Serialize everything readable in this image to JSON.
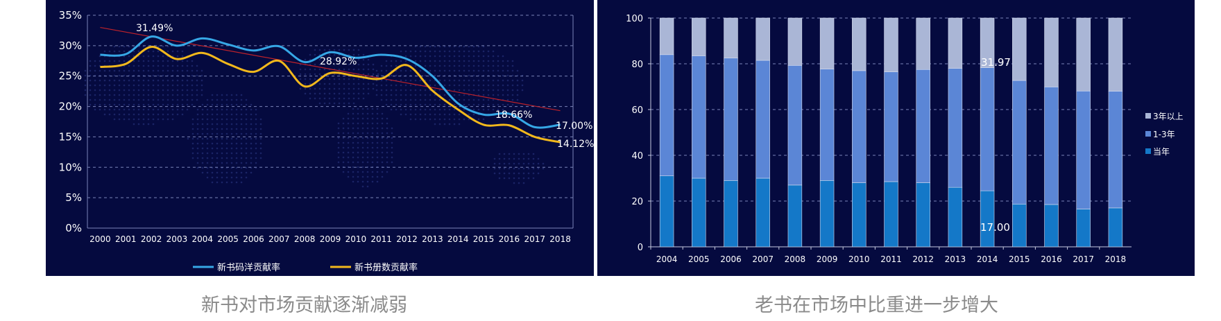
{
  "captions": {
    "left": "新书对市场贡献逐渐减弱",
    "right": "老书在市场中比重进一步增大"
  },
  "colors": {
    "panel_bg": "#050a3f",
    "line_code_yang": "#36a7e6",
    "line_volume": "#f2b81c",
    "trend": "#c0222a",
    "bar_current": "#1478c8",
    "bar_1to3": "#5b86d6",
    "bar_3plus": "#aab6d6"
  },
  "chart_data": [
    {
      "type": "line",
      "title": "",
      "x": [
        "2000",
        "2001",
        "2002",
        "2003",
        "2004",
        "2005",
        "2006",
        "2007",
        "2008",
        "2009",
        "2010",
        "2011",
        "2012",
        "2013",
        "2014",
        "2015",
        "2016",
        "2017",
        "2018"
      ],
      "ylim": [
        0,
        35
      ],
      "yticks": [
        "0%",
        "5%",
        "10%",
        "15%",
        "20%",
        "25%",
        "30%",
        "35%"
      ],
      "series": [
        {
          "name": "新书码洋贡献率",
          "values": [
            28.5,
            28.6,
            31.49,
            30.0,
            31.2,
            30.2,
            29.2,
            29.9,
            27.3,
            28.92,
            28.0,
            28.5,
            27.8,
            25.0,
            20.5,
            18.66,
            18.8,
            16.6,
            17.0
          ]
        },
        {
          "name": "新书册数贡献率",
          "values": [
            26.5,
            27.0,
            29.8,
            27.8,
            28.8,
            27.0,
            25.7,
            27.5,
            23.3,
            25.5,
            25.0,
            24.6,
            26.8,
            22.6,
            19.5,
            17.0,
            16.9,
            15.0,
            14.12
          ]
        }
      ],
      "trendline": {
        "start": 33.0,
        "end": 19.3
      },
      "annotations": [
        "31.49%",
        "28.92%",
        "18.66%",
        "17.00%",
        "14.12%"
      ],
      "legend": [
        "新书码洋贡献率",
        "新书册数贡献率"
      ],
      "legend_position": "bottom"
    },
    {
      "type": "bar",
      "stacked": true,
      "categories": [
        "2004",
        "2005",
        "2006",
        "2007",
        "2008",
        "2009",
        "2010",
        "2011",
        "2012",
        "2013",
        "2014",
        "2015",
        "2016",
        "2017",
        "2018"
      ],
      "ylim": [
        0,
        100
      ],
      "yticks": [
        "0",
        "20",
        "40",
        "60",
        "80",
        "100"
      ],
      "series": [
        {
          "name": "当年",
          "values": [
            31,
            30,
            29,
            30,
            27,
            29,
            28,
            28.5,
            28,
            26,
            24.5,
            18.7,
            18.5,
            16.5,
            17
          ]
        },
        {
          "name": "1-3年",
          "values": [
            53,
            53.5,
            53.5,
            51.5,
            52.3,
            48.7,
            49,
            48,
            49.5,
            52,
            53.8,
            54,
            51.4,
            51.6,
            51.03
          ]
        },
        {
          "name": "3年以上",
          "values": [
            16,
            16.5,
            17.5,
            18.5,
            20.7,
            22.3,
            23,
            23.5,
            22.5,
            22,
            21.7,
            27.3,
            30.1,
            31.9,
            31.97
          ]
        }
      ],
      "annotations": [
        "31.97",
        "17.00"
      ],
      "legend": [
        "3年以上",
        "1-3年",
        "当年"
      ],
      "legend_position": "right"
    }
  ]
}
